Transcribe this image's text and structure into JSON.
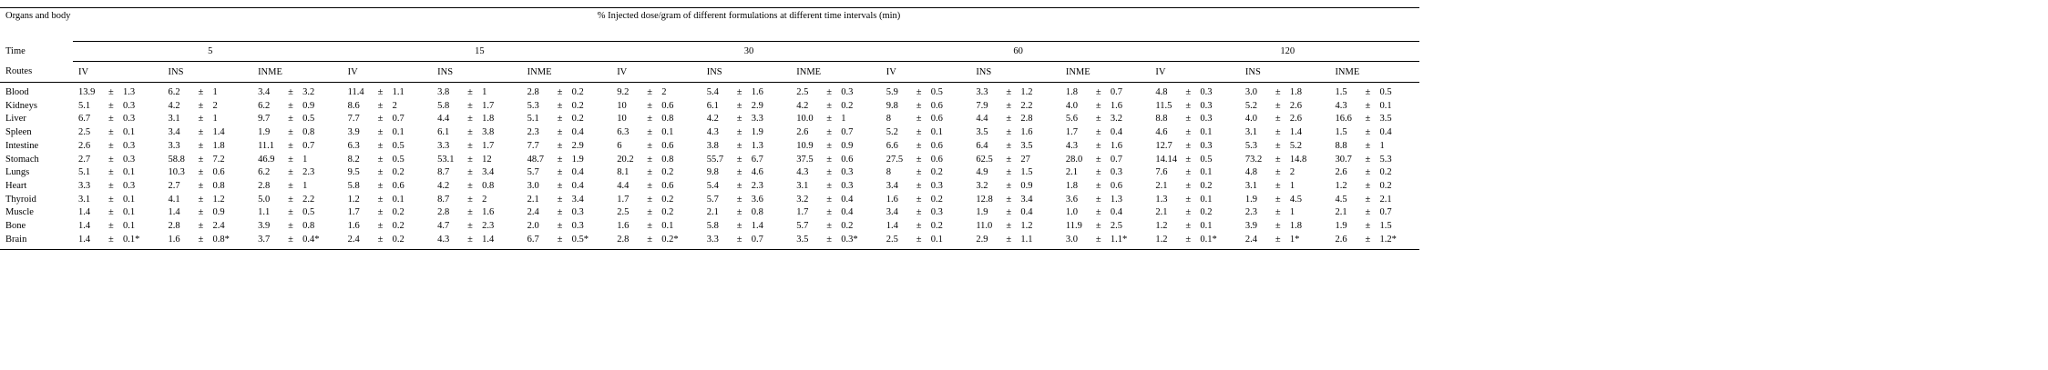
{
  "header": {
    "organs": "Organs and body fluids",
    "title": "% Injected dose/gram of different formulations at different time intervals (min)",
    "time": "Time",
    "routes_label": "Routes"
  },
  "times": [
    "5",
    "15",
    "30",
    "60",
    "120"
  ],
  "routes": [
    "IV",
    "INS",
    "INME"
  ],
  "pm": "±",
  "table": {
    "rows": [
      {
        "organ": "Blood",
        "cells": [
          [
            "13.9",
            "1.3"
          ],
          [
            "6.2",
            "1"
          ],
          [
            "3.4",
            "3.2"
          ],
          [
            "11.4",
            "1.1"
          ],
          [
            "3.8",
            "1"
          ],
          [
            "2.8",
            "0.2"
          ],
          [
            "9.2",
            "2"
          ],
          [
            "5.4",
            "1.6"
          ],
          [
            "2.5",
            "0.3"
          ],
          [
            "5.9",
            "0.5"
          ],
          [
            "3.3",
            "1.2"
          ],
          [
            "1.8",
            "0.7"
          ],
          [
            "4.8",
            "0.3"
          ],
          [
            "3.0",
            "1.8"
          ],
          [
            "1.5",
            "0.5"
          ]
        ]
      },
      {
        "organ": "Kidneys",
        "cells": [
          [
            "5.1",
            "0.3"
          ],
          [
            "4.2",
            "2"
          ],
          [
            "6.2",
            "0.9"
          ],
          [
            "8.6",
            "2"
          ],
          [
            "5.8",
            "1.7"
          ],
          [
            "5.3",
            "0.2"
          ],
          [
            "10",
            "0.6"
          ],
          [
            "6.1",
            "2.9"
          ],
          [
            "4.2",
            "0.2"
          ],
          [
            "9.8",
            "0.6"
          ],
          [
            "7.9",
            "2.2"
          ],
          [
            "4.0",
            "1.6"
          ],
          [
            "11.5",
            "0.3"
          ],
          [
            "5.2",
            "2.6"
          ],
          [
            "4.3",
            "0.1"
          ]
        ]
      },
      {
        "organ": "Liver",
        "cells": [
          [
            "6.7",
            "0.3"
          ],
          [
            "3.1",
            "1"
          ],
          [
            "9.7",
            "0.5"
          ],
          [
            "7.7",
            "0.7"
          ],
          [
            "4.4",
            "1.8"
          ],
          [
            "5.1",
            "0.2"
          ],
          [
            "10",
            "0.8"
          ],
          [
            "4.2",
            "3.3"
          ],
          [
            "10.0",
            "1"
          ],
          [
            "8",
            "0.6"
          ],
          [
            "4.4",
            "2.8"
          ],
          [
            "5.6",
            "3.2"
          ],
          [
            "8.8",
            "0.3"
          ],
          [
            "4.0",
            "2.6"
          ],
          [
            "16.6",
            "3.5"
          ]
        ]
      },
      {
        "organ": "Spleen",
        "cells": [
          [
            "2.5",
            "0.1"
          ],
          [
            "3.4",
            "1.4"
          ],
          [
            "1.9",
            "0.8"
          ],
          [
            "3.9",
            "0.1"
          ],
          [
            "6.1",
            "3.8"
          ],
          [
            "2.3",
            "0.4"
          ],
          [
            "6.3",
            "0.1"
          ],
          [
            "4.3",
            "1.9"
          ],
          [
            "2.6",
            "0.7"
          ],
          [
            "5.2",
            "0.1"
          ],
          [
            "3.5",
            "1.6"
          ],
          [
            "1.7",
            "0.4"
          ],
          [
            "4.6",
            "0.1"
          ],
          [
            "3.1",
            "1.4"
          ],
          [
            "1.5",
            "0.4"
          ]
        ]
      },
      {
        "organ": "Intestine",
        "cells": [
          [
            "2.6",
            "0.3"
          ],
          [
            "3.3",
            "1.8"
          ],
          [
            "11.1",
            "0.7"
          ],
          [
            "6.3",
            "0.5"
          ],
          [
            "3.3",
            "1.7"
          ],
          [
            "7.7",
            "2.9"
          ],
          [
            "6",
            "0.6"
          ],
          [
            "3.8",
            "1.3"
          ],
          [
            "10.9",
            "0.9"
          ],
          [
            "6.6",
            "0.6"
          ],
          [
            "6.4",
            "3.5"
          ],
          [
            "4.3",
            "1.6"
          ],
          [
            "12.7",
            "0.3"
          ],
          [
            "5.3",
            "5.2"
          ],
          [
            "8.8",
            "1"
          ]
        ]
      },
      {
        "organ": "Stomach",
        "cells": [
          [
            "2.7",
            "0.3"
          ],
          [
            "58.8",
            "7.2"
          ],
          [
            "46.9",
            "1"
          ],
          [
            "8.2",
            "0.5"
          ],
          [
            "53.1",
            "12"
          ],
          [
            "48.7",
            "1.9"
          ],
          [
            "20.2",
            "0.8"
          ],
          [
            "55.7",
            "6.7"
          ],
          [
            "37.5",
            "0.6"
          ],
          [
            "27.5",
            "0.6"
          ],
          [
            "62.5",
            "27"
          ],
          [
            "28.0",
            "0.7"
          ],
          [
            "14.14",
            "0.5"
          ],
          [
            "73.2",
            "14.8"
          ],
          [
            "30.7",
            "5.3"
          ]
        ]
      },
      {
        "organ": "Lungs",
        "cells": [
          [
            "5.1",
            "0.1"
          ],
          [
            "10.3",
            "0.6"
          ],
          [
            "6.2",
            "2.3"
          ],
          [
            "9.5",
            "0.2"
          ],
          [
            "8.7",
            "3.4"
          ],
          [
            "5.7",
            "0.4"
          ],
          [
            "8.1",
            "0.2"
          ],
          [
            "9.8",
            "4.6"
          ],
          [
            "4.3",
            "0.3"
          ],
          [
            "8",
            "0.2"
          ],
          [
            "4.9",
            "1.5"
          ],
          [
            "2.1",
            "0.3"
          ],
          [
            "7.6",
            "0.1"
          ],
          [
            "4.8",
            "2"
          ],
          [
            "2.6",
            "0.2"
          ]
        ]
      },
      {
        "organ": "Heart",
        "cells": [
          [
            "3.3",
            "0.3"
          ],
          [
            "2.7",
            "0.8"
          ],
          [
            "2.8",
            "1"
          ],
          [
            "5.8",
            "0.6"
          ],
          [
            "4.2",
            "0.8"
          ],
          [
            "3.0",
            "0.4"
          ],
          [
            "4.4",
            "0.6"
          ],
          [
            "5.4",
            "2.3"
          ],
          [
            "3.1",
            "0.3"
          ],
          [
            "3.4",
            "0.3"
          ],
          [
            "3.2",
            "0.9"
          ],
          [
            "1.8",
            "0.6"
          ],
          [
            "2.1",
            "0.2"
          ],
          [
            "3.1",
            "1"
          ],
          [
            "1.2",
            "0.2"
          ]
        ]
      },
      {
        "organ": "Thyroid",
        "cells": [
          [
            "3.1",
            "0.1"
          ],
          [
            "4.1",
            "1.2"
          ],
          [
            "5.0",
            "2.2"
          ],
          [
            "1.2",
            "0.1"
          ],
          [
            "8.7",
            "2"
          ],
          [
            "2.1",
            "3.4"
          ],
          [
            "1.7",
            "0.2"
          ],
          [
            "5.7",
            "3.6"
          ],
          [
            "3.2",
            "0.4"
          ],
          [
            "1.6",
            "0.2"
          ],
          [
            "12.8",
            "3.4"
          ],
          [
            "3.6",
            "1.3"
          ],
          [
            "1.3",
            "0.1"
          ],
          [
            "1.9",
            "4.5"
          ],
          [
            "4.5",
            "2.1"
          ]
        ]
      },
      {
        "organ": "Muscle",
        "cells": [
          [
            "1.4",
            "0.1"
          ],
          [
            "1.4",
            "0.9"
          ],
          [
            "1.1",
            "0.5"
          ],
          [
            "1.7",
            "0.2"
          ],
          [
            "2.8",
            "1.6"
          ],
          [
            "2.4",
            "0.3"
          ],
          [
            "2.5",
            "0.2"
          ],
          [
            "2.1",
            "0.8"
          ],
          [
            "1.7",
            "0.4"
          ],
          [
            "3.4",
            "0.3"
          ],
          [
            "1.9",
            "0.4"
          ],
          [
            "1.0",
            "0.4"
          ],
          [
            "2.1",
            "0.2"
          ],
          [
            "2.3",
            "1"
          ],
          [
            "2.1",
            "0.7"
          ]
        ]
      },
      {
        "organ": "Bone",
        "cells": [
          [
            "1.4",
            "0.1"
          ],
          [
            "2.8",
            "2.4"
          ],
          [
            "3.9",
            "0.8"
          ],
          [
            "1.6",
            "0.2"
          ],
          [
            "4.7",
            "2.3"
          ],
          [
            "2.0",
            "0.3"
          ],
          [
            "1.6",
            "0.1"
          ],
          [
            "5.8",
            "1.4"
          ],
          [
            "5.7",
            "0.2"
          ],
          [
            "1.4",
            "0.2"
          ],
          [
            "11.0",
            "1.2"
          ],
          [
            "11.9",
            "2.5"
          ],
          [
            "1.2",
            "0.1"
          ],
          [
            "3.9",
            "1.8"
          ],
          [
            "1.9",
            "1.5"
          ]
        ]
      },
      {
        "organ": "Brain",
        "cells": [
          [
            "1.4",
            "0.1*"
          ],
          [
            "1.6",
            "0.8*"
          ],
          [
            "3.7",
            "0.4*"
          ],
          [
            "2.4",
            "0.2"
          ],
          [
            "4.3",
            "1.4"
          ],
          [
            "6.7",
            "0.5*"
          ],
          [
            "2.8",
            "0.2*"
          ],
          [
            "3.3",
            "0.7"
          ],
          [
            "3.5",
            "0.3*"
          ],
          [
            "2.5",
            "0.1"
          ],
          [
            "2.9",
            "1.1"
          ],
          [
            "3.0",
            "1.1*"
          ],
          [
            "1.2",
            "0.1*"
          ],
          [
            "2.4",
            "1*"
          ],
          [
            "2.6",
            "1.2*"
          ]
        ]
      }
    ]
  }
}
